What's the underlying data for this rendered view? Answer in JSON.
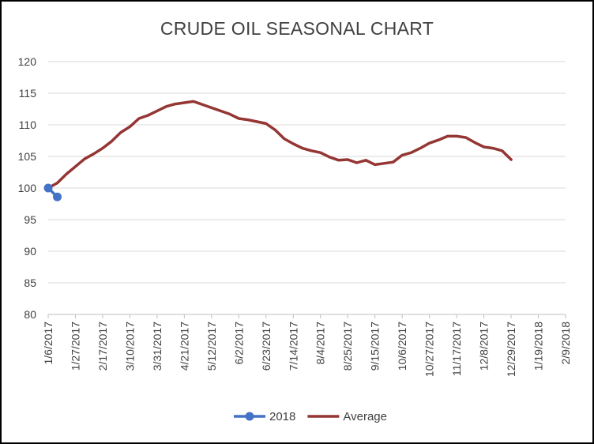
{
  "chart_data": {
    "type": "line",
    "title": "CRUDE OIL SEASONAL CHART",
    "xlabel": "",
    "ylabel": "",
    "ylim": [
      80,
      120
    ],
    "yticks": [
      80,
      85,
      90,
      95,
      100,
      105,
      110,
      115,
      120
    ],
    "xlim": [
      "1/6/2017",
      "2/9/2018"
    ],
    "xticks": [
      "1/6/2017",
      "1/27/2017",
      "2/17/2017",
      "3/10/2017",
      "3/31/2017",
      "4/21/2017",
      "5/12/2017",
      "6/2/2017",
      "6/23/2017",
      "7/14/2017",
      "8/4/2017",
      "8/25/2017",
      "9/15/2017",
      "10/6/2017",
      "10/27/2017",
      "11/17/2017",
      "12/8/2017",
      "12/29/2017",
      "1/19/2018",
      "2/9/2018"
    ],
    "grid": true,
    "legend_position": "bottom",
    "series": [
      {
        "name": "2018",
        "color": "#4472c4",
        "markers": true,
        "x": [
          "1/6/2017",
          "1/13/2017"
        ],
        "y": [
          100.0,
          98.6
        ]
      },
      {
        "name": "Average",
        "color": "#943634",
        "markers": false,
        "x": [
          "1/6/2017",
          "1/13/2017",
          "1/20/2017",
          "1/27/2017",
          "2/3/2017",
          "2/10/2017",
          "2/17/2017",
          "2/24/2017",
          "3/3/2017",
          "3/10/2017",
          "3/17/2017",
          "3/24/2017",
          "3/31/2017",
          "4/7/2017",
          "4/14/2017",
          "4/21/2017",
          "4/28/2017",
          "5/5/2017",
          "5/12/2017",
          "5/19/2017",
          "5/26/2017",
          "6/2/2017",
          "6/9/2017",
          "6/16/2017",
          "6/23/2017",
          "6/30/2017",
          "7/7/2017",
          "7/14/2017",
          "7/21/2017",
          "7/28/2017",
          "8/4/2017",
          "8/11/2017",
          "8/18/2017",
          "8/25/2017",
          "9/1/2017",
          "9/8/2017",
          "9/15/2017",
          "9/22/2017",
          "9/29/2017",
          "10/6/2017",
          "10/13/2017",
          "10/20/2017",
          "10/27/2017",
          "11/3/2017",
          "11/10/2017",
          "11/17/2017",
          "11/24/2017",
          "12/1/2017",
          "12/8/2017",
          "12/15/2017",
          "12/22/2017",
          "12/29/2017"
        ],
        "y": [
          100.0,
          100.8,
          102.2,
          103.4,
          104.6,
          105.4,
          106.3,
          107.4,
          108.8,
          109.7,
          111.0,
          111.5,
          112.2,
          112.9,
          113.3,
          113.5,
          113.7,
          113.2,
          112.7,
          112.2,
          111.7,
          111.0,
          110.8,
          110.5,
          110.2,
          109.2,
          107.8,
          107.0,
          106.3,
          105.9,
          105.6,
          104.9,
          104.4,
          104.5,
          104.0,
          104.4,
          103.7,
          103.9,
          104.1,
          105.2,
          105.6,
          106.3,
          107.1,
          107.6,
          108.2,
          108.2,
          108.0,
          107.2,
          106.5,
          106.3,
          105.9,
          104.5
        ]
      }
    ]
  }
}
